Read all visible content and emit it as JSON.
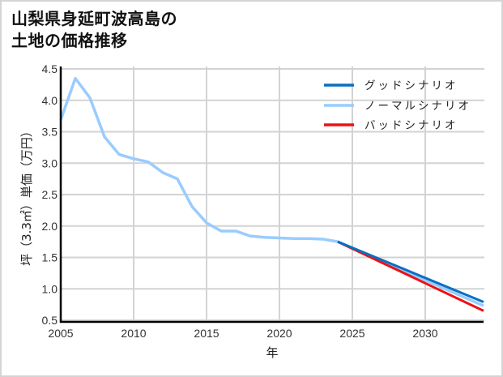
{
  "title": {
    "line1": "山梨県身延町波高島の",
    "line2": "土地の価格推移"
  },
  "chart_data": {
    "type": "line",
    "title": "山梨県身延町波高島の土地の価格推移",
    "xlabel": "年",
    "ylabel": "坪（3.3㎡）単価（万円）",
    "xlim": [
      2005,
      2034
    ],
    "ylim": [
      0.5,
      4.5
    ],
    "x_ticks": [
      "2005",
      "2010",
      "2015",
      "2020",
      "2025",
      "2030"
    ],
    "y_ticks": [
      "0.5",
      "1.0",
      "1.5",
      "2.0",
      "2.5",
      "3.0",
      "3.5",
      "4.0",
      "4.5"
    ],
    "grid": true,
    "legend_position": "upper right",
    "series": [
      {
        "name": "グッドシナリオ",
        "color": "#0a6fc4",
        "x": [
          2024,
          2034
        ],
        "values": [
          1.75,
          0.79
        ]
      },
      {
        "name": "ノーマルシナリオ",
        "color": "#99ccff",
        "x": [
          2005,
          2006,
          2007,
          2008,
          2009,
          2010,
          2011,
          2012,
          2013,
          2014,
          2015,
          2016,
          2017,
          2018,
          2019,
          2020,
          2021,
          2022,
          2023,
          2024,
          2034
        ],
        "values": [
          3.69,
          4.35,
          4.04,
          3.42,
          3.14,
          3.07,
          3.02,
          2.85,
          2.75,
          2.31,
          2.05,
          1.92,
          1.92,
          1.84,
          1.82,
          1.81,
          1.8,
          1.8,
          1.79,
          1.75,
          0.73
        ]
      },
      {
        "name": "バッドシナリオ",
        "color": "#ee1111",
        "x": [
          2024,
          2034
        ],
        "values": [
          1.75,
          0.65
        ]
      }
    ]
  }
}
